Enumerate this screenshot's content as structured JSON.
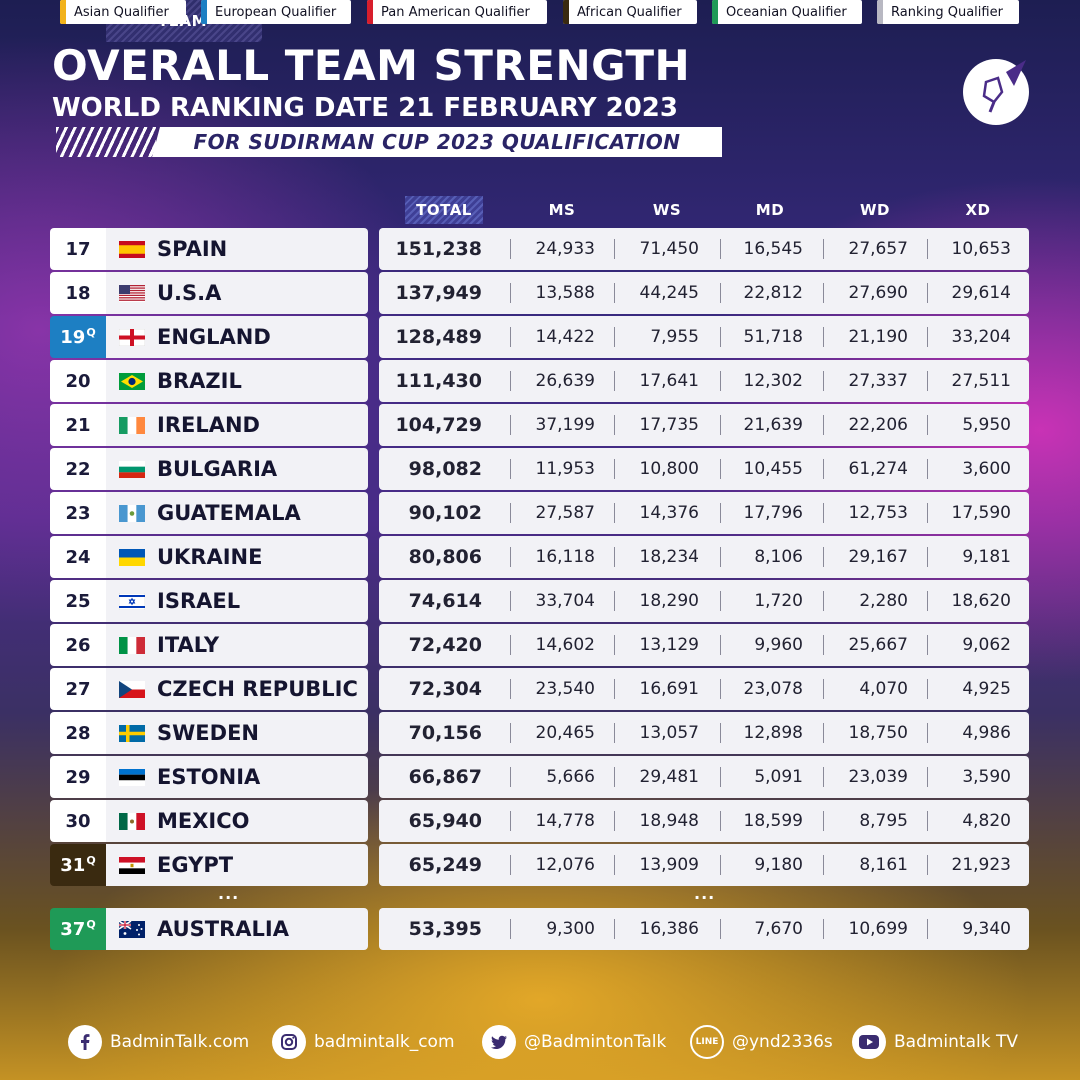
{
  "header": {
    "title": "OVERALL TEAM STRENGTH",
    "subtitle": "WORLD RANKING DATE 21 FEBRUARY 2023",
    "banner": "FOR SUDIRMAN CUP 2023 QUALIFICATION"
  },
  "columns": {
    "team": "TEAM",
    "total": "TOTAL",
    "ms": "MS",
    "ws": "WS",
    "md": "MD",
    "wd": "WD",
    "xd": "XD"
  },
  "rows": [
    {
      "rank": "17",
      "q": "",
      "team": "SPAIN",
      "flag": "spain-flag-icon",
      "total": "151,238",
      "ms": "24,933",
      "ws": "71,450",
      "md": "16,545",
      "wd": "27,657",
      "xd": "10,653"
    },
    {
      "rank": "18",
      "q": "",
      "team": "U.S.A",
      "flag": "usa-flag-icon",
      "total": "137,949",
      "ms": "13,588",
      "ws": "44,245",
      "md": "22,812",
      "wd": "27,690",
      "xd": "29,614"
    },
    {
      "rank": "19",
      "q": "Q",
      "team": "ENGLAND",
      "flag": "england-flag-icon",
      "total": "128,489",
      "ms": "14,422",
      "ws": "7,955",
      "md": "51,718",
      "wd": "21,190",
      "xd": "33,204"
    },
    {
      "rank": "20",
      "q": "",
      "team": "BRAZIL",
      "flag": "brazil-flag-icon",
      "total": "111,430",
      "ms": "26,639",
      "ws": "17,641",
      "md": "12,302",
      "wd": "27,337",
      "xd": "27,511"
    },
    {
      "rank": "21",
      "q": "",
      "team": "IRELAND",
      "flag": "ireland-flag-icon",
      "total": "104,729",
      "ms": "37,199",
      "ws": "17,735",
      "md": "21,639",
      "wd": "22,206",
      "xd": "5,950"
    },
    {
      "rank": "22",
      "q": "",
      "team": "BULGARIA",
      "flag": "bulgaria-flag-icon",
      "total": "98,082",
      "ms": "11,953",
      "ws": "10,800",
      "md": "10,455",
      "wd": "61,274",
      "xd": "3,600"
    },
    {
      "rank": "23",
      "q": "",
      "team": "GUATEMALA",
      "flag": "guatemala-flag-icon",
      "total": "90,102",
      "ms": "27,587",
      "ws": "14,376",
      "md": "17,796",
      "wd": "12,753",
      "xd": "17,590"
    },
    {
      "rank": "24",
      "q": "",
      "team": "UKRAINE",
      "flag": "ukraine-flag-icon",
      "total": "80,806",
      "ms": "16,118",
      "ws": "18,234",
      "md": "8,106",
      "wd": "29,167",
      "xd": "9,181"
    },
    {
      "rank": "25",
      "q": "",
      "team": "ISRAEL",
      "flag": "israel-flag-icon",
      "total": "74,614",
      "ms": "33,704",
      "ws": "18,290",
      "md": "1,720",
      "wd": "2,280",
      "xd": "18,620"
    },
    {
      "rank": "26",
      "q": "",
      "team": "ITALY",
      "flag": "italy-flag-icon",
      "total": "72,420",
      "ms": "14,602",
      "ws": "13,129",
      "md": "9,960",
      "wd": "25,667",
      "xd": "9,062"
    },
    {
      "rank": "27",
      "q": "",
      "team": "CZECH REPUBLIC",
      "flag": "czech-flag-icon",
      "total": "72,304",
      "ms": "23,540",
      "ws": "16,691",
      "md": "23,078",
      "wd": "4,070",
      "xd": "4,925"
    },
    {
      "rank": "28",
      "q": "",
      "team": "SWEDEN",
      "flag": "sweden-flag-icon",
      "total": "70,156",
      "ms": "20,465",
      "ws": "13,057",
      "md": "12,898",
      "wd": "18,750",
      "xd": "4,986"
    },
    {
      "rank": "29",
      "q": "",
      "team": "ESTONIA",
      "flag": "estonia-flag-icon",
      "total": "66,867",
      "ms": "5,666",
      "ws": "29,481",
      "md": "5,091",
      "wd": "23,039",
      "xd": "3,590"
    },
    {
      "rank": "30",
      "q": "",
      "team": "MEXICO",
      "flag": "mexico-flag-icon",
      "total": "65,940",
      "ms": "14,778",
      "ws": "18,948",
      "md": "18,599",
      "wd": "8,795",
      "xd": "4,820"
    },
    {
      "rank": "31",
      "q": "Q",
      "team": "EGYPT",
      "flag": "egypt-flag-icon",
      "total": "65,249",
      "ms": "12,076",
      "ws": "13,909",
      "md": "9,180",
      "wd": "8,161",
      "xd": "21,923"
    },
    {
      "rank": "37",
      "q": "Q",
      "team": "AUSTRALIA",
      "flag": "australia-flag-icon",
      "total": "53,395",
      "ms": "9,300",
      "ws": "16,386",
      "md": "7,670",
      "wd": "10,699",
      "xd": "9,340"
    }
  ],
  "ellipsis": "...",
  "legend": [
    {
      "label": "Asian Qualifier",
      "color": "#f2b21b"
    },
    {
      "label": "European Qualifier",
      "color": "#1d7fc3"
    },
    {
      "label": "Pan American Qualifier",
      "color": "#d81e2c"
    },
    {
      "label": "African Qualifier",
      "color": "#3a2a10"
    },
    {
      "label": "Oceanian Qualifier",
      "color": "#1f9a57"
    },
    {
      "label": "Ranking Qualifier",
      "color": "#b8b8c2"
    }
  ],
  "social": [
    {
      "label": "BadminTalk.com",
      "icon": "facebook-icon"
    },
    {
      "label": "badmintalk_com",
      "icon": "instagram-icon"
    },
    {
      "label": "@BadmintonTalk",
      "icon": "twitter-icon"
    },
    {
      "label": "@ynd2336s",
      "icon": "line-icon",
      "badge": "LINE"
    },
    {
      "label": "Badmintalk TV",
      "icon": "youtube-icon"
    }
  ]
}
